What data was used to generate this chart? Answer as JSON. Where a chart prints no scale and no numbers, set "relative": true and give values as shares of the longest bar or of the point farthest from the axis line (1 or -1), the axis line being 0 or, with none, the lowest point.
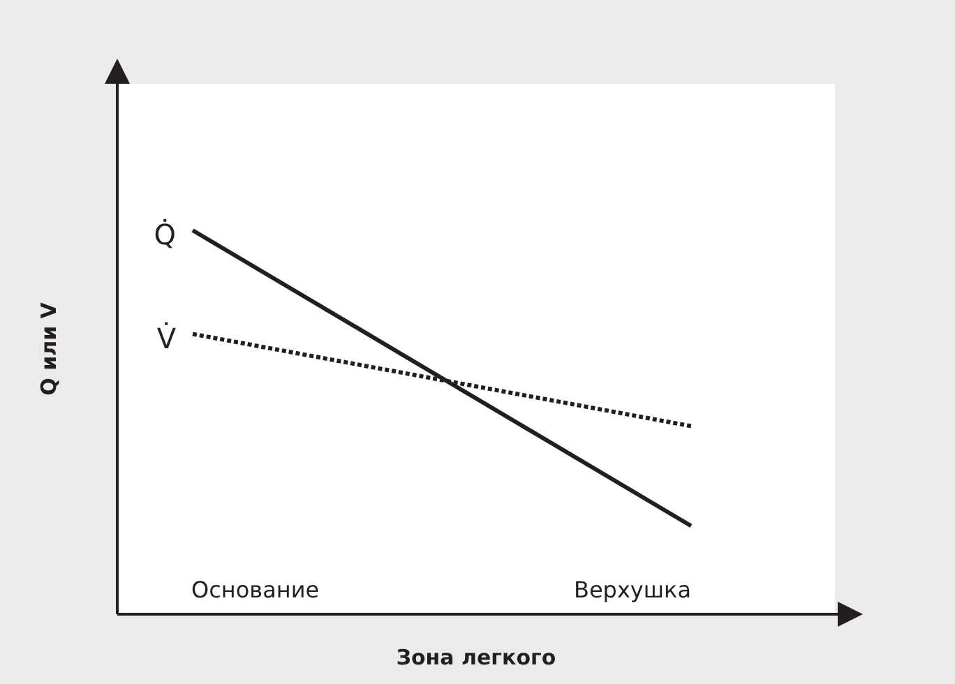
{
  "chart_data": {
    "type": "line",
    "relative": true,
    "xlabel": "Зона легкого",
    "ylabel": "Q или V",
    "categories": [
      null,
      null
    ],
    "annotations": [
      "Основание",
      "Верхушка"
    ],
    "series": [
      {
        "name": "Q̇",
        "color": "#231f20",
        "values": [
          1,
          0.23
        ],
        "line_style": "solid"
      },
      {
        "name": "V̇",
        "color": "#231f20",
        "values": [
          0.73,
          0.49
        ],
        "line_style": "dotted"
      }
    ]
  }
}
